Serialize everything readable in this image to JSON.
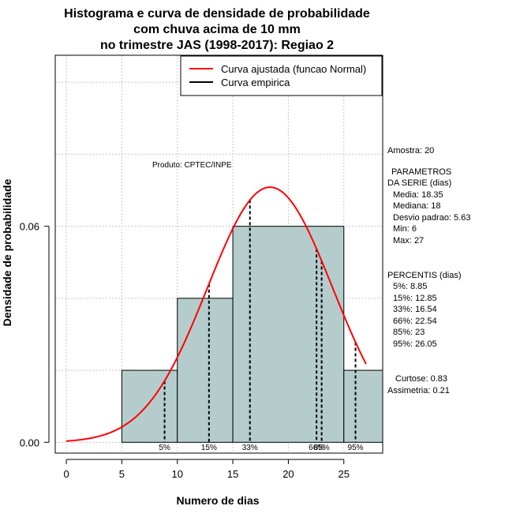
{
  "chart_data": {
    "type": "histogram",
    "title": [
      "Histograma e curva de densidade de probabilidade",
      "com chuva acima de 10 mm",
      "no trimestre JAS (1998-2017): Regiao 2"
    ],
    "xlabel": "Numero de dias",
    "ylabel": "Densidade de probabilidade",
    "xlim": [
      -1,
      28.5
    ],
    "ylim": [
      -0.003,
      0.1075
    ],
    "x_ticks": [
      0,
      5,
      10,
      15,
      20,
      25
    ],
    "y_ticks": [
      0.0,
      0.06
    ],
    "y_tick_labels": [
      "0.00",
      "0.06"
    ],
    "grid": true,
    "bins": [
      {
        "start": 5,
        "end": 10,
        "density": 0.02
      },
      {
        "start": 10,
        "end": 15,
        "density": 0.04
      },
      {
        "start": 15,
        "end": 25,
        "density": 0.06
      },
      {
        "start": 25,
        "end": 30,
        "density": 0.02
      }
    ],
    "curve": {
      "name": "Curva ajustada (funcao Normal)",
      "distribution": "normal",
      "mean": 18.35,
      "sd": 5.63,
      "x_range": [
        0,
        27
      ],
      "color": "#ff0000"
    },
    "empirical": {
      "name": "Curva empirica",
      "color": "#000000"
    },
    "percentile_lines": [
      {
        "label": "5%",
        "x": 8.85
      },
      {
        "label": "15%",
        "x": 12.85
      },
      {
        "label": "33%",
        "x": 16.54
      },
      {
        "label": "66%",
        "x": 22.54
      },
      {
        "label": "85%",
        "x": 23
      },
      {
        "label": "95%",
        "x": 26.05
      }
    ],
    "colors": {
      "bar_fill": "#b4cccc",
      "curve": "#ff0000",
      "grid": "#c8c8c8"
    }
  },
  "annotations": {
    "produto": "Produto: CPTEC/INPE",
    "amostra": "Amostra: 20",
    "parametros_title": "PARAMETROS",
    "parametros_sub": "DA SERIE (dias)",
    "parametros": [
      "Media: 18.35",
      "Mediana: 18",
      "Desvio padrao: 5.63",
      "Min: 6",
      "Max: 27"
    ],
    "percentis_title": "PERCENTIS (dias)",
    "percentis": [
      "5%: 8.85",
      "15%: 12.85",
      "33%: 16.54",
      "66%: 22.54",
      "85%: 23",
      "95%: 26.05"
    ],
    "curtose": "Curtose: 0.83",
    "assimetria": "Assimetria: 0.21"
  }
}
